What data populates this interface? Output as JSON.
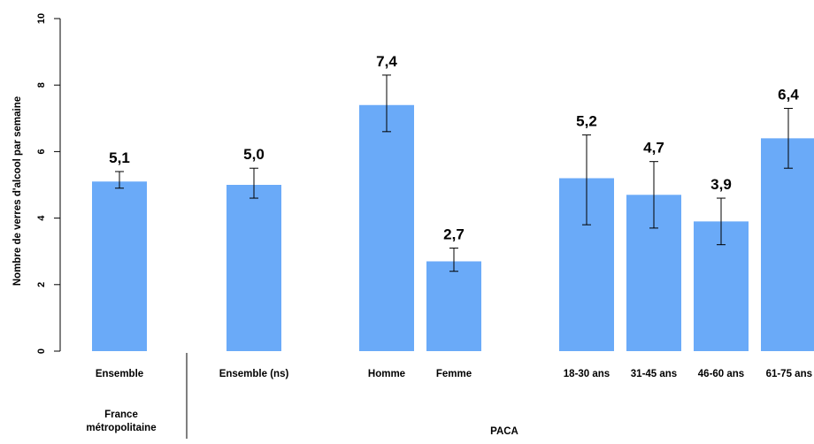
{
  "chart_data": {
    "type": "bar",
    "title": "",
    "ylabel": "Nombre de verres d'alcool par semaine",
    "xlabel": "",
    "ylim": [
      0,
      10
    ],
    "yticks": [
      "0",
      "2",
      "4",
      "6",
      "8",
      "10"
    ],
    "grid": false,
    "bar_color": "#6aaaf8",
    "categories": [
      "Ensemble",
      "Ensemble (ns)",
      "Homme",
      "Femme",
      "18-30 ans",
      "31-45 ans",
      "46-60 ans",
      "61-75 ans"
    ],
    "values": [
      5.1,
      5.0,
      7.4,
      2.7,
      5.2,
      4.7,
      3.9,
      6.4
    ],
    "value_labels": [
      "5,1",
      "5,0",
      "7,4",
      "2,7",
      "5,2",
      "4,7",
      "3,9",
      "6,4"
    ],
    "error_low": [
      4.9,
      4.6,
      6.6,
      2.4,
      3.8,
      3.7,
      3.2,
      5.5
    ],
    "error_high": [
      5.4,
      5.5,
      8.3,
      3.1,
      6.5,
      5.7,
      4.6,
      7.3
    ],
    "groups": [
      {
        "name": "France\nmétropolitaine",
        "categories": [
          "Ensemble"
        ]
      },
      {
        "name": "PACA",
        "categories": [
          "Ensemble (ns)",
          "Homme",
          "Femme",
          "18-30 ans",
          "31-45 ans",
          "46-60 ans",
          "61-75 ans"
        ]
      }
    ]
  }
}
